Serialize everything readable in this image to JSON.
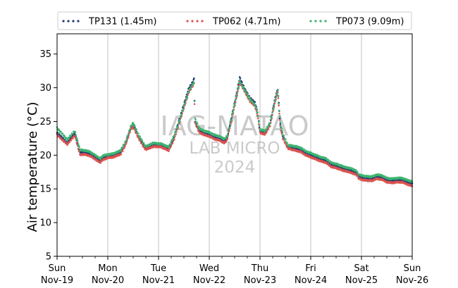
{
  "chart_data": {
    "type": "scatter",
    "ylabel": "Air temperature (°C)",
    "xlabel": "",
    "ylim": [
      5,
      38
    ],
    "yticks": [
      5,
      10,
      15,
      20,
      25,
      30,
      35
    ],
    "xlim": [
      0,
      7
    ],
    "xticks": [
      {
        "x": 0,
        "day": "Sun",
        "date": "Nov-19"
      },
      {
        "x": 1,
        "day": "Mon",
        "date": "Nov-20"
      },
      {
        "x": 2,
        "day": "Tue",
        "date": "Nov-21"
      },
      {
        "x": 3,
        "day": "Wed",
        "date": "Nov-22"
      },
      {
        "x": 4,
        "day": "Thu",
        "date": "Nov-23"
      },
      {
        "x": 5,
        "day": "Fri",
        "date": "Nov-24"
      },
      {
        "x": 6,
        "day": "Sat",
        "date": "Nov-25"
      },
      {
        "x": 7,
        "day": "Sun",
        "date": "Nov-26"
      }
    ],
    "grid": "vertical",
    "legend": "top",
    "x_unit": "days since Nov-19 00:00",
    "series": [
      {
        "name": "TP131 (1.45m)",
        "color": "#1f3a73",
        "points": [
          [
            0,
            23.3
          ],
          [
            0.1,
            22.6
          ],
          [
            0.2,
            21.8
          ],
          [
            0.3,
            22.8
          ],
          [
            0.35,
            23.2
          ],
          [
            0.45,
            20.4
          ],
          [
            0.55,
            20.4
          ],
          [
            0.65,
            20.2
          ],
          [
            0.85,
            19.2
          ],
          [
            0.9,
            19.6
          ],
          [
            1.0,
            19.8
          ],
          [
            1.1,
            19.9
          ],
          [
            1.25,
            20.4
          ],
          [
            1.35,
            21.8
          ],
          [
            1.45,
            24.0
          ],
          [
            1.5,
            24.5
          ],
          [
            1.6,
            22.8
          ],
          [
            1.7,
            21.5
          ],
          [
            1.75,
            21.0
          ],
          [
            1.9,
            21.5
          ],
          [
            2.05,
            21.4
          ],
          [
            2.2,
            20.9
          ],
          [
            2.3,
            22.5
          ],
          [
            2.4,
            25.0
          ],
          [
            2.5,
            27.5
          ],
          [
            2.6,
            30.0
          ],
          [
            2.65,
            30.5
          ],
          [
            2.7,
            31.3
          ],
          [
            2.72,
            25.0
          ],
          [
            2.8,
            23.6
          ],
          [
            2.9,
            23.2
          ],
          [
            3.0,
            23.0
          ],
          [
            3.1,
            22.6
          ],
          [
            3.2,
            22.4
          ],
          [
            3.3,
            22.0
          ],
          [
            3.35,
            22.5
          ],
          [
            3.45,
            26.0
          ],
          [
            3.55,
            29.5
          ],
          [
            3.6,
            31.5
          ],
          [
            3.7,
            29.8
          ],
          [
            3.8,
            28.5
          ],
          [
            3.9,
            27.8
          ],
          [
            3.95,
            26.5
          ],
          [
            4.0,
            23.5
          ],
          [
            4.1,
            23.3
          ],
          [
            4.2,
            24.8
          ],
          [
            4.3,
            28.5
          ],
          [
            4.35,
            29.8
          ],
          [
            4.4,
            24.5
          ],
          [
            4.45,
            22.8
          ],
          [
            4.55,
            21.2
          ],
          [
            4.7,
            21.0
          ],
          [
            4.8,
            20.8
          ],
          [
            4.9,
            20.3
          ],
          [
            5.0,
            20.0
          ],
          [
            5.2,
            19.4
          ],
          [
            5.3,
            19.2
          ],
          [
            5.4,
            18.6
          ],
          [
            5.5,
            18.4
          ],
          [
            5.65,
            18.0
          ],
          [
            5.8,
            17.7
          ],
          [
            5.9,
            17.4
          ],
          [
            5.95,
            16.8
          ],
          [
            6.05,
            16.6
          ],
          [
            6.2,
            16.5
          ],
          [
            6.3,
            16.8
          ],
          [
            6.4,
            16.7
          ],
          [
            6.5,
            16.3
          ],
          [
            6.6,
            16.2
          ],
          [
            6.7,
            16.3
          ],
          [
            6.8,
            16.3
          ],
          [
            6.9,
            16.0
          ],
          [
            7.0,
            15.8
          ]
        ]
      },
      {
        "name": "TP062 (4.71m)",
        "color": "#d9534f",
        "points": [
          [
            0,
            23.0
          ],
          [
            0.1,
            22.3
          ],
          [
            0.2,
            21.6
          ],
          [
            0.3,
            22.5
          ],
          [
            0.35,
            22.9
          ],
          [
            0.45,
            20.1
          ],
          [
            0.55,
            20.1
          ],
          [
            0.65,
            19.9
          ],
          [
            0.85,
            18.9
          ],
          [
            0.9,
            19.3
          ],
          [
            1.0,
            19.6
          ],
          [
            1.1,
            19.7
          ],
          [
            1.25,
            20.1
          ],
          [
            1.35,
            21.5
          ],
          [
            1.45,
            23.8
          ],
          [
            1.5,
            24.2
          ],
          [
            1.6,
            22.6
          ],
          [
            1.7,
            21.3
          ],
          [
            1.75,
            20.8
          ],
          [
            1.9,
            21.3
          ],
          [
            2.05,
            21.2
          ],
          [
            2.2,
            20.7
          ],
          [
            2.3,
            22.2
          ],
          [
            2.4,
            24.5
          ],
          [
            2.5,
            27.0
          ],
          [
            2.6,
            29.4
          ],
          [
            2.65,
            30.0
          ],
          [
            2.7,
            30.6
          ],
          [
            2.72,
            24.8
          ],
          [
            2.8,
            23.4
          ],
          [
            2.9,
            23.0
          ],
          [
            3.0,
            22.8
          ],
          [
            3.1,
            22.4
          ],
          [
            3.2,
            22.2
          ],
          [
            3.3,
            21.8
          ],
          [
            3.35,
            22.2
          ],
          [
            3.45,
            25.6
          ],
          [
            3.55,
            29.0
          ],
          [
            3.6,
            30.8
          ],
          [
            3.7,
            29.4
          ],
          [
            3.8,
            28.0
          ],
          [
            3.9,
            27.3
          ],
          [
            3.95,
            26.0
          ],
          [
            4.0,
            23.3
          ],
          [
            4.1,
            23.1
          ],
          [
            4.2,
            24.4
          ],
          [
            4.3,
            28.0
          ],
          [
            4.35,
            29.4
          ],
          [
            4.4,
            24.2
          ],
          [
            4.45,
            22.5
          ],
          [
            4.55,
            21.0
          ],
          [
            4.7,
            20.7
          ],
          [
            4.8,
            20.5
          ],
          [
            4.9,
            20.0
          ],
          [
            5.0,
            19.7
          ],
          [
            5.2,
            19.1
          ],
          [
            5.3,
            18.9
          ],
          [
            5.4,
            18.3
          ],
          [
            5.5,
            18.1
          ],
          [
            5.65,
            17.7
          ],
          [
            5.8,
            17.4
          ],
          [
            5.9,
            17.1
          ],
          [
            5.95,
            16.5
          ],
          [
            6.05,
            16.3
          ],
          [
            6.2,
            16.2
          ],
          [
            6.3,
            16.5
          ],
          [
            6.4,
            16.4
          ],
          [
            6.5,
            16.0
          ],
          [
            6.6,
            15.9
          ],
          [
            6.7,
            16.0
          ],
          [
            6.8,
            16.0
          ],
          [
            6.9,
            15.7
          ],
          [
            7.0,
            15.4
          ]
        ]
      },
      {
        "name": "TP073 (9.09m)",
        "color": "#3cb371",
        "points": [
          [
            0,
            24.0
          ],
          [
            0.1,
            23.2
          ],
          [
            0.2,
            22.3
          ],
          [
            0.3,
            23.2
          ],
          [
            0.35,
            23.6
          ],
          [
            0.45,
            20.8
          ],
          [
            0.55,
            20.7
          ],
          [
            0.65,
            20.5
          ],
          [
            0.85,
            19.5
          ],
          [
            0.9,
            19.9
          ],
          [
            1.0,
            20.1
          ],
          [
            1.1,
            20.2
          ],
          [
            1.25,
            20.7
          ],
          [
            1.35,
            22.0
          ],
          [
            1.45,
            24.2
          ],
          [
            1.5,
            24.8
          ],
          [
            1.6,
            23.1
          ],
          [
            1.7,
            21.8
          ],
          [
            1.75,
            21.3
          ],
          [
            1.9,
            21.8
          ],
          [
            2.05,
            21.7
          ],
          [
            2.2,
            21.2
          ],
          [
            2.3,
            22.8
          ],
          [
            2.4,
            24.8
          ],
          [
            2.5,
            27.2
          ],
          [
            2.6,
            29.6
          ],
          [
            2.65,
            30.2
          ],
          [
            2.7,
            30.8
          ],
          [
            2.72,
            25.4
          ],
          [
            2.8,
            24.0
          ],
          [
            2.9,
            23.6
          ],
          [
            3.0,
            23.4
          ],
          [
            3.1,
            23.0
          ],
          [
            3.2,
            22.8
          ],
          [
            3.3,
            22.4
          ],
          [
            3.35,
            22.8
          ],
          [
            3.45,
            26.0
          ],
          [
            3.55,
            29.2
          ],
          [
            3.6,
            31.0
          ],
          [
            3.7,
            29.6
          ],
          [
            3.8,
            28.3
          ],
          [
            3.9,
            27.5
          ],
          [
            3.95,
            26.3
          ],
          [
            4.0,
            23.8
          ],
          [
            4.1,
            23.6
          ],
          [
            4.2,
            24.8
          ],
          [
            4.3,
            28.2
          ],
          [
            4.35,
            29.6
          ],
          [
            4.4,
            24.8
          ],
          [
            4.45,
            23.1
          ],
          [
            4.55,
            21.5
          ],
          [
            4.7,
            21.3
          ],
          [
            4.8,
            21.1
          ],
          [
            4.9,
            20.6
          ],
          [
            5.0,
            20.3
          ],
          [
            5.2,
            19.7
          ],
          [
            5.3,
            19.5
          ],
          [
            5.4,
            18.9
          ],
          [
            5.5,
            18.7
          ],
          [
            5.65,
            18.3
          ],
          [
            5.8,
            18.0
          ],
          [
            5.9,
            17.7
          ],
          [
            5.95,
            17.1
          ],
          [
            6.05,
            16.9
          ],
          [
            6.2,
            16.8
          ],
          [
            6.3,
            17.1
          ],
          [
            6.4,
            17.0
          ],
          [
            6.5,
            16.6
          ],
          [
            6.6,
            16.5
          ],
          [
            6.7,
            16.6
          ],
          [
            6.8,
            16.6
          ],
          [
            6.9,
            16.3
          ],
          [
            7.0,
            16.1
          ]
        ]
      }
    ],
    "watermark": [
      "IAG-MATAO",
      "LAB MICRO",
      "2024"
    ]
  }
}
